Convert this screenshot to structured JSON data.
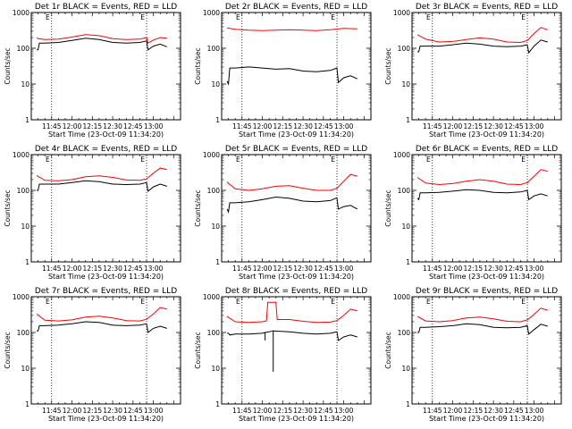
{
  "chart_data": [
    {
      "type": "line",
      "title": "Det 1r BLACK = Events, RED = LLD",
      "xlabel": "Start Time (23-Oct-09 11:34:20)",
      "ylabel": "Counts/sec",
      "y_scale": "log",
      "ylim": [
        1,
        1000
      ],
      "xlim_minutes": [
        30,
        140
      ],
      "x_ticks": [
        "11:45",
        "12:00",
        "12:15",
        "12:30",
        "12:45",
        "13:00"
      ],
      "y_ticks": [
        "1",
        "10",
        "100",
        "1000"
      ],
      "vlines_dotted": [
        "11:45",
        "12:55"
      ],
      "markers": [
        "E",
        "E"
      ],
      "grid": false,
      "series": [
        {
          "color": "#ff0000",
          "x": [
            "11:34",
            "11:35",
            "11:40",
            "11:50",
            "12:00",
            "12:10",
            "12:20",
            "12:30",
            "12:40",
            "12:50",
            "12:55",
            "12:56",
            "13:00",
            "13:05",
            "13:10"
          ],
          "values": [
            200,
            185,
            175,
            180,
            205,
            240,
            225,
            185,
            175,
            180,
            200,
            140,
            170,
            200,
            190
          ]
        },
        {
          "color": "#000000",
          "x": [
            "11:34",
            "11:35",
            "11:36",
            "11:40",
            "11:50",
            "12:00",
            "12:10",
            "12:20",
            "12:30",
            "12:40",
            "12:50",
            "12:55",
            "12:56",
            "13:00",
            "13:05",
            "13:10"
          ],
          "values": [
            90,
            90,
            140,
            140,
            145,
            165,
            190,
            175,
            145,
            140,
            145,
            160,
            90,
            115,
            130,
            110
          ]
        }
      ]
    },
    {
      "type": "line",
      "title": "Det 2r BLACK = Events, RED = LLD",
      "xlabel": "Start Time (23-Oct-09 11:34:20)",
      "ylabel": "Counts/sec",
      "y_scale": "log",
      "ylim": [
        1,
        1000
      ],
      "xlim_minutes": [
        30,
        140
      ],
      "x_ticks": [
        "11:45",
        "12:00",
        "12:15",
        "12:30",
        "12:45",
        "13:00"
      ],
      "y_ticks": [
        "1",
        "10",
        "100",
        "1000"
      ],
      "vlines_dotted": [
        "11:45",
        "12:55"
      ],
      "markers": [
        "E",
        "E"
      ],
      "grid": false,
      "series": [
        {
          "color": "#ff0000",
          "x": [
            "11:34",
            "11:40",
            "11:50",
            "12:00",
            "12:10",
            "12:20",
            "12:30",
            "12:40",
            "12:50",
            "13:00",
            "13:10"
          ],
          "values": [
            370,
            340,
            320,
            310,
            320,
            330,
            320,
            310,
            330,
            360,
            350
          ]
        },
        {
          "color": "#000000",
          "x": [
            "11:34",
            "11:35",
            "11:36",
            "11:40",
            "11:50",
            "12:00",
            "12:10",
            "12:20",
            "12:30",
            "12:40",
            "12:50",
            "12:55",
            "12:56",
            "13:00",
            "13:05",
            "13:10"
          ],
          "values": [
            12,
            10,
            28,
            28,
            30,
            28,
            26,
            27,
            23,
            22,
            24,
            28,
            11,
            15,
            17,
            14
          ]
        }
      ]
    },
    {
      "type": "line",
      "title": "Det 3r BLACK = Events, RED = LLD",
      "xlabel": "Start Time (23-Oct-09 11:34:20)",
      "ylabel": "Counts/sec",
      "y_scale": "log",
      "ylim": [
        1,
        1000
      ],
      "xlim_minutes": [
        30,
        140
      ],
      "x_ticks": [
        "11:45",
        "12:00",
        "12:15",
        "12:30",
        "12:45",
        "13:00"
      ],
      "y_ticks": [
        "1",
        "10",
        "100",
        "1000"
      ],
      "vlines_dotted": [
        "11:45",
        "12:55"
      ],
      "markers": [
        "E",
        "E"
      ],
      "grid": false,
      "series": [
        {
          "color": "#ff0000",
          "x": [
            "11:34",
            "11:40",
            "11:50",
            "12:00",
            "12:10",
            "12:20",
            "12:30",
            "12:40",
            "12:50",
            "12:55",
            "13:00",
            "13:05",
            "13:10"
          ],
          "values": [
            240,
            180,
            150,
            155,
            175,
            195,
            180,
            150,
            145,
            165,
            260,
            380,
            330
          ]
        },
        {
          "color": "#000000",
          "x": [
            "11:34",
            "11:35",
            "11:36",
            "11:40",
            "11:50",
            "12:00",
            "12:10",
            "12:20",
            "12:30",
            "12:40",
            "12:50",
            "12:55",
            "12:56",
            "13:00",
            "13:05",
            "13:10"
          ],
          "values": [
            80,
            80,
            115,
            115,
            115,
            125,
            140,
            130,
            115,
            110,
            115,
            125,
            75,
            115,
            170,
            150
          ]
        }
      ]
    },
    {
      "type": "line",
      "title": "Det 4r BLACK = Events, RED = LLD",
      "xlabel": "Start Time (23-Oct-09 11:34:20)",
      "ylabel": "Counts/sec",
      "y_scale": "log",
      "ylim": [
        1,
        1000
      ],
      "xlim_minutes": [
        30,
        140
      ],
      "x_ticks": [
        "11:45",
        "12:00",
        "12:15",
        "12:30",
        "12:45",
        "13:00"
      ],
      "y_ticks": [
        "1",
        "10",
        "100",
        "1000"
      ],
      "vlines_dotted": [
        "11:45",
        "12:55"
      ],
      "markers": [
        "E",
        "E"
      ],
      "grid": false,
      "series": [
        {
          "color": "#ff0000",
          "x": [
            "11:34",
            "11:40",
            "11:50",
            "12:00",
            "12:10",
            "12:20",
            "12:30",
            "12:40",
            "12:50",
            "12:55",
            "13:00",
            "13:05",
            "13:10"
          ],
          "values": [
            260,
            190,
            185,
            200,
            240,
            255,
            230,
            195,
            190,
            210,
            300,
            420,
            380
          ]
        },
        {
          "color": "#000000",
          "x": [
            "11:34",
            "11:35",
            "11:36",
            "11:40",
            "11:50",
            "12:00",
            "12:10",
            "12:20",
            "12:30",
            "12:40",
            "12:50",
            "12:55",
            "12:56",
            "13:00",
            "13:05",
            "13:10"
          ],
          "values": [
            100,
            100,
            150,
            150,
            150,
            165,
            185,
            175,
            150,
            145,
            150,
            165,
            95,
            125,
            150,
            130
          ]
        }
      ]
    },
    {
      "type": "line",
      "title": "Det 5r BLACK = Events, RED = LLD",
      "xlabel": "Start Time (23-Oct-09 11:34:20)",
      "ylabel": "Counts/sec",
      "y_scale": "log",
      "ylim": [
        1,
        1000
      ],
      "xlim_minutes": [
        30,
        140
      ],
      "x_ticks": [
        "11:45",
        "12:00",
        "12:15",
        "12:30",
        "12:45",
        "13:00"
      ],
      "y_ticks": [
        "1",
        "10",
        "100",
        "1000"
      ],
      "vlines_dotted": [
        "11:45",
        "12:55"
      ],
      "markers": [
        "E",
        "E"
      ],
      "grid": false,
      "series": [
        {
          "color": "#ff0000",
          "x": [
            "11:34",
            "11:40",
            "11:50",
            "12:00",
            "12:10",
            "12:20",
            "12:30",
            "12:40",
            "12:50",
            "12:55",
            "13:00",
            "13:05",
            "13:10"
          ],
          "values": [
            170,
            110,
            100,
            110,
            130,
            135,
            115,
            100,
            100,
            115,
            180,
            280,
            250
          ]
        },
        {
          "color": "#000000",
          "x": [
            "11:34",
            "11:35",
            "11:36",
            "11:40",
            "11:50",
            "12:00",
            "12:10",
            "12:20",
            "12:30",
            "12:40",
            "12:50",
            "12:55",
            "12:56",
            "13:00",
            "13:05",
            "13:10"
          ],
          "values": [
            30,
            25,
            45,
            45,
            48,
            55,
            65,
            60,
            50,
            48,
            52,
            62,
            30,
            35,
            38,
            30
          ]
        }
      ]
    },
    {
      "type": "line",
      "title": "Det 6r BLACK = Events, RED = LLD",
      "xlabel": "Start Time (23-Oct-09 11:34:20)",
      "ylabel": "Counts/sec",
      "y_scale": "log",
      "ylim": [
        1,
        1000
      ],
      "xlim_minutes": [
        30,
        140
      ],
      "x_ticks": [
        "11:45",
        "12:00",
        "12:15",
        "12:30",
        "12:45",
        "13:00"
      ],
      "y_ticks": [
        "1",
        "10",
        "100",
        "1000"
      ],
      "vlines_dotted": [
        "11:45",
        "12:55"
      ],
      "markers": [
        "E",
        "E"
      ],
      "grid": false,
      "series": [
        {
          "color": "#ff0000",
          "x": [
            "11:34",
            "11:40",
            "11:50",
            "12:00",
            "12:10",
            "12:20",
            "12:30",
            "12:40",
            "12:50",
            "12:55",
            "13:00",
            "13:05",
            "13:10"
          ],
          "values": [
            230,
            160,
            145,
            155,
            180,
            200,
            180,
            150,
            145,
            165,
            250,
            380,
            340
          ]
        },
        {
          "color": "#000000",
          "x": [
            "11:34",
            "11:35",
            "11:36",
            "11:40",
            "11:50",
            "12:00",
            "12:10",
            "12:20",
            "12:30",
            "12:40",
            "12:50",
            "12:55",
            "12:56",
            "13:00",
            "13:05",
            "13:10"
          ],
          "values": [
            60,
            55,
            85,
            85,
            88,
            95,
            105,
            100,
            88,
            85,
            90,
            100,
            55,
            70,
            80,
            70
          ]
        }
      ]
    },
    {
      "type": "line",
      "title": "Det 7r BLACK = Events, RED = LLD",
      "xlabel": "Start Time (23-Oct-09 11:34:20)",
      "ylabel": "Counts/sec",
      "y_scale": "log",
      "ylim": [
        1,
        1000
      ],
      "xlim_minutes": [
        30,
        140
      ],
      "x_ticks": [
        "11:45",
        "12:00",
        "12:15",
        "12:30",
        "12:45",
        "13:00"
      ],
      "y_ticks": [
        "1",
        "10",
        "100",
        "1000"
      ],
      "vlines_dotted": [
        "11:45",
        "12:55"
      ],
      "markers": [
        "E",
        "E"
      ],
      "grid": false,
      "series": [
        {
          "color": "#ff0000",
          "x": [
            "11:34",
            "11:40",
            "11:50",
            "12:00",
            "12:10",
            "12:20",
            "12:30",
            "12:40",
            "12:50",
            "12:55",
            "13:00",
            "13:05",
            "13:10"
          ],
          "values": [
            330,
            220,
            210,
            225,
            270,
            285,
            255,
            215,
            210,
            235,
            330,
            500,
            450
          ]
        },
        {
          "color": "#000000",
          "x": [
            "11:34",
            "11:35",
            "11:36",
            "11:40",
            "11:50",
            "12:00",
            "12:10",
            "12:20",
            "12:30",
            "12:40",
            "12:50",
            "12:55",
            "12:56",
            "13:00",
            "13:05",
            "13:10"
          ],
          "values": [
            110,
            110,
            155,
            155,
            160,
            175,
            200,
            190,
            160,
            155,
            160,
            175,
            100,
            130,
            150,
            130
          ]
        }
      ]
    },
    {
      "type": "line",
      "title": "Det 8r BLACK = Events, RED = LLD",
      "xlabel": "Start Time (23-Oct-09 11:34:20)",
      "ylabel": "Counts/sec",
      "y_scale": "log",
      "ylim": [
        1,
        1000
      ],
      "xlim_minutes": [
        30,
        140
      ],
      "x_ticks": [
        "11:45",
        "12:00",
        "12:15",
        "12:30",
        "12:45",
        "13:00"
      ],
      "y_ticks": [
        "1",
        "10",
        "100",
        "1000"
      ],
      "vlines_dotted": [
        "11:45",
        "12:55"
      ],
      "markers": [
        "E",
        "E"
      ],
      "grid": false,
      "series": [
        {
          "color": "#ff0000",
          "x": [
            "11:34",
            "11:40",
            "11:50",
            "12:00",
            "12:03",
            "12:04",
            "12:10",
            "12:11",
            "12:20",
            "12:30",
            "12:40",
            "12:50",
            "12:55",
            "13:00",
            "13:05",
            "13:10"
          ],
          "values": [
            280,
            200,
            190,
            200,
            210,
            700,
            700,
            230,
            230,
            205,
            190,
            195,
            215,
            300,
            450,
            400
          ]
        },
        {
          "color": "#000000",
          "x": [
            "11:34",
            "11:35",
            "11:36",
            "11:40",
            "11:50",
            "12:00",
            "12:02",
            "12:02",
            "12:02",
            "12:08",
            "12:08",
            "12:08",
            "12:20",
            "12:30",
            "12:40",
            "12:50",
            "12:55",
            "12:56",
            "13:00",
            "13:05",
            "13:10"
          ],
          "values": [
            95,
            95,
            85,
            90,
            90,
            95,
            100,
            60,
            100,
            110,
            8,
            110,
            105,
            95,
            90,
            95,
            105,
            60,
            75,
            85,
            75
          ]
        }
      ]
    },
    {
      "type": "line",
      "title": "Det 9r BLACK = Events, RED = LLD",
      "xlabel": "Start Time (23-Oct-09 11:34:20)",
      "ylabel": "Counts/sec",
      "y_scale": "log",
      "ylim": [
        1,
        1000
      ],
      "xlim_minutes": [
        30,
        140
      ],
      "x_ticks": [
        "11:45",
        "12:00",
        "12:15",
        "12:30",
        "12:45",
        "13:00"
      ],
      "y_ticks": [
        "1",
        "10",
        "100",
        "1000"
      ],
      "vlines_dotted": [
        "11:45",
        "12:55"
      ],
      "markers": [
        "E",
        "E"
      ],
      "grid": false,
      "series": [
        {
          "color": "#ff0000",
          "x": [
            "11:34",
            "11:40",
            "11:50",
            "12:00",
            "12:10",
            "12:20",
            "12:30",
            "12:40",
            "12:50",
            "12:55",
            "13:00",
            "13:05",
            "13:10"
          ],
          "values": [
            280,
            210,
            200,
            215,
            255,
            270,
            240,
            205,
            200,
            225,
            320,
            480,
            420
          ]
        },
        {
          "color": "#000000",
          "x": [
            "11:34",
            "11:35",
            "11:36",
            "11:40",
            "11:50",
            "12:00",
            "12:10",
            "12:20",
            "12:30",
            "12:40",
            "12:50",
            "12:55",
            "12:56",
            "13:00",
            "13:05",
            "13:10"
          ],
          "values": [
            100,
            100,
            140,
            140,
            145,
            155,
            175,
            165,
            140,
            135,
            140,
            155,
            90,
            120,
            170,
            150
          ]
        }
      ]
    }
  ]
}
